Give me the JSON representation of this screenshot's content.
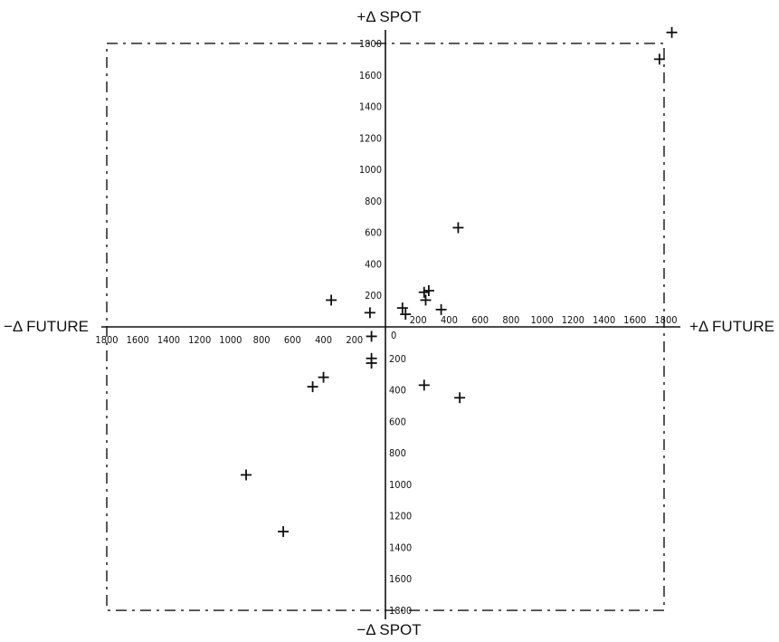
{
  "chart_data": {
    "type": "scatter",
    "title": "",
    "labels": {
      "y_positive": "+Δ SPOT",
      "y_negative": "−Δ SPOT",
      "x_positive": "+Δ FUTURE",
      "x_negative": "−Δ FUTURE"
    },
    "xlim": [
      -1800,
      1800
    ],
    "ylim": [
      -1800,
      1800
    ],
    "x_tick_labels_negative": [
      "1800",
      "1600",
      "1400",
      "1200",
      "1000",
      "800",
      "600",
      "400",
      "200"
    ],
    "x_tick_labels_positive": [
      "200",
      "400",
      "600",
      "800",
      "1000",
      "1200",
      "1400",
      "1600",
      "1800"
    ],
    "y_tick_labels_positive": [
      "200",
      "400",
      "600",
      "800",
      "1000",
      "1200",
      "1400",
      "1600",
      "1800"
    ],
    "y_tick_labels_negative": [
      "200",
      "400",
      "600",
      "800",
      "1000",
      "1200",
      "1400",
      "1600",
      "1800"
    ],
    "origin_label": "0",
    "boundary": {
      "x": [
        -1800,
        1800
      ],
      "y": [
        -1800,
        1800
      ],
      "style": "dash-dot"
    },
    "points": [
      {
        "x": 1850,
        "y": 1870
      },
      {
        "x": 1770,
        "y": 1700
      },
      {
        "x": 470,
        "y": 630
      },
      {
        "x": 250,
        "y": 220
      },
      {
        "x": 280,
        "y": 230
      },
      {
        "x": 260,
        "y": 170
      },
      {
        "x": 110,
        "y": 120
      },
      {
        "x": 130,
        "y": 80
      },
      {
        "x": 360,
        "y": 110
      },
      {
        "x": -350,
        "y": 170
      },
      {
        "x": -100,
        "y": 90
      },
      {
        "x": -90,
        "y": -60
      },
      {
        "x": -90,
        "y": -200
      },
      {
        "x": -90,
        "y": -230
      },
      {
        "x": -400,
        "y": -320
      },
      {
        "x": -470,
        "y": -380
      },
      {
        "x": 250,
        "y": -370
      },
      {
        "x": 480,
        "y": -450
      },
      {
        "x": -900,
        "y": -940
      },
      {
        "x": -660,
        "y": -1300
      }
    ]
  }
}
